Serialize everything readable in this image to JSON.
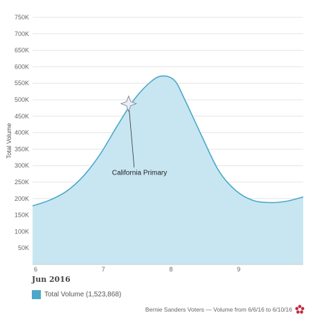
{
  "chart_data": {
    "type": "area",
    "ylabel": "Total Volume",
    "yticks": [
      "50K",
      "100K",
      "150K",
      "200K",
      "250K",
      "300K",
      "350K",
      "400K",
      "450K",
      "500K",
      "550K",
      "600K",
      "650K",
      "700K",
      "750K"
    ],
    "ylim": [
      0,
      750000
    ],
    "xticks": [
      "6",
      "7",
      "8",
      "9"
    ],
    "x_month_label": "Jun 2016",
    "xlim": [
      6,
      10
    ],
    "grid": true,
    "series": [
      {
        "name": "Total Volume (1,523,868)",
        "color": "#4ba8c8",
        "fill": "#c8e6f2",
        "x": [
          6.0,
          6.25,
          6.5,
          6.75,
          7.0,
          7.25,
          7.5,
          7.75,
          7.92,
          8.1,
          8.25,
          8.5,
          8.75,
          9.0,
          9.25,
          9.5,
          9.75,
          10.0
        ],
        "y": [
          178000,
          195000,
          222000,
          268000,
          335000,
          420000,
          500000,
          555000,
          572000,
          558000,
          500000,
          390000,
          285000,
          225000,
          195000,
          188000,
          192000,
          205000
        ]
      }
    ],
    "annotations": [
      {
        "label": "California Primary",
        "x": 7.42,
        "y": 488000
      }
    ],
    "legend_position": "bottom-left"
  },
  "legend": {
    "label": "Total Volume (1,523,868)"
  },
  "footer": {
    "text": "Bernie Sanders Voters — Volume from 6/6/16 to 6/10/16",
    "icon": "flower-logo-icon",
    "icon_color": "#c0283a"
  }
}
